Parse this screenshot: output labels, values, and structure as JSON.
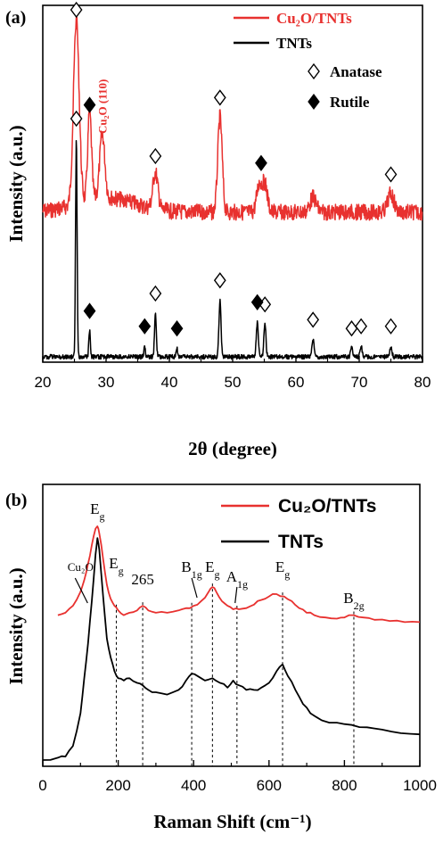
{
  "chart_data": [
    {
      "type": "line",
      "panel_label": "(a)",
      "xlabel": "2θ (degree)",
      "ylabel": "Intensity (a.u.)",
      "xlim": [
        20,
        80
      ],
      "xticks": [
        20,
        30,
        40,
        50,
        60,
        70,
        80
      ],
      "grid": false,
      "legend_position": "top-right",
      "legend": [
        {
          "text": "Cu₂O/TNTs",
          "color": "#e8312f",
          "type": "line"
        },
        {
          "text": "TNTs",
          "color": "#000000",
          "type": "line"
        },
        {
          "text": "Anatase",
          "color": "#000000",
          "type": "open-diamond"
        },
        {
          "text": "Rutile",
          "color": "#000000",
          "type": "filled-diamond"
        }
      ],
      "peak_label": {
        "text": "Cu₂O (110)",
        "x": 29.5,
        "color": "#e8312f"
      },
      "series": [
        {
          "name": "Cu₂O/TNTs",
          "color": "#e8312f",
          "peaks": [
            {
              "x": 25.3,
              "h": 1.0,
              "w": 0.45
            },
            {
              "x": 27.4,
              "h": 0.48,
              "w": 0.3
            },
            {
              "x": 29.4,
              "h": 0.35,
              "w": 0.4
            },
            {
              "x": 37.8,
              "h": 0.2,
              "w": 0.4
            },
            {
              "x": 48.0,
              "h": 0.52,
              "w": 0.35
            },
            {
              "x": 54.2,
              "h": 0.15,
              "w": 0.4
            },
            {
              "x": 55.1,
              "h": 0.15,
              "w": 0.4
            },
            {
              "x": 62.7,
              "h": 0.08,
              "w": 0.5
            },
            {
              "x": 75.0,
              "h": 0.1,
              "w": 0.5
            }
          ],
          "anatase_markers": [
            25.3,
            37.8,
            48.0,
            75.0
          ],
          "rutile_markers": [
            27.4,
            54.5
          ]
        },
        {
          "name": "TNTs",
          "color": "#000000",
          "peaks": [
            {
              "x": 25.3,
              "h": 1.0,
              "w": 0.12
            },
            {
              "x": 27.4,
              "h": 0.12,
              "w": 0.12
            },
            {
              "x": 36.1,
              "h": 0.05,
              "w": 0.12
            },
            {
              "x": 37.8,
              "h": 0.2,
              "w": 0.14
            },
            {
              "x": 41.2,
              "h": 0.04,
              "w": 0.12
            },
            {
              "x": 48.0,
              "h": 0.26,
              "w": 0.16
            },
            {
              "x": 53.9,
              "h": 0.16,
              "w": 0.16
            },
            {
              "x": 55.1,
              "h": 0.15,
              "w": 0.16
            },
            {
              "x": 62.7,
              "h": 0.08,
              "w": 0.16
            },
            {
              "x": 68.8,
              "h": 0.04,
              "w": 0.16
            },
            {
              "x": 70.3,
              "h": 0.05,
              "w": 0.16
            },
            {
              "x": 75.0,
              "h": 0.05,
              "w": 0.16
            }
          ],
          "anatase_markers": [
            25.3,
            37.8,
            48.0,
            55.1,
            62.7,
            68.8,
            70.3,
            75.0
          ],
          "rutile_markers": [
            27.4,
            36.1,
            41.2,
            53.9
          ]
        }
      ]
    },
    {
      "type": "line",
      "panel_label": "(b)",
      "xlabel": "Raman Shift (cm⁻¹)",
      "ylabel": "Intensity (a.u.)",
      "xlim": [
        0,
        1000
      ],
      "xticks": [
        0,
        200,
        400,
        600,
        800,
        1000
      ],
      "grid": false,
      "legend_position": "top-right",
      "legend": [
        {
          "text": "Cu₂O/TNTs",
          "color": "#e8312f",
          "type": "line"
        },
        {
          "text": "TNTs",
          "color": "#000000",
          "type": "line"
        }
      ],
      "band_labels": [
        {
          "text": "Cu₂O",
          "x": 100
        },
        {
          "text": "E",
          "sub": "g",
          "x": 145
        },
        {
          "text": "E",
          "sub": "g",
          "x": 195
        },
        {
          "text": "265",
          "x": 265
        },
        {
          "text": "B",
          "sub": "1g",
          "x": 395
        },
        {
          "text": "E",
          "sub": "g",
          "x": 450
        },
        {
          "text": "A",
          "sub": "1g",
          "x": 515
        },
        {
          "text": "E",
          "sub": "g",
          "x": 636
        },
        {
          "text": "B",
          "sub": "2g",
          "x": 825
        }
      ],
      "dashed_lines_x": [
        195,
        265,
        395,
        450,
        515,
        636,
        825
      ],
      "series": [
        {
          "name": "Cu₂O/TNTs",
          "color": "#e8312f",
          "x": [
            40,
            60,
            80,
            100,
            110,
            120,
            130,
            140,
            145,
            150,
            160,
            170,
            180,
            190,
            200,
            215,
            230,
            250,
            265,
            280,
            300,
            330,
            360,
            380,
            400,
            420,
            440,
            450,
            460,
            475,
            490,
            505,
            520,
            540,
            560,
            580,
            600,
            620,
            640,
            660,
            680,
            700,
            720,
            750,
            780,
            800,
            825,
            850,
            880,
            920,
            960,
            1000
          ],
          "y": [
            0.62,
            0.63,
            0.66,
            0.72,
            0.77,
            0.84,
            0.92,
            0.99,
            1.0,
            0.97,
            0.86,
            0.75,
            0.69,
            0.66,
            0.64,
            0.62,
            0.63,
            0.64,
            0.66,
            0.64,
            0.63,
            0.63,
            0.64,
            0.65,
            0.66,
            0.68,
            0.72,
            0.74,
            0.72,
            0.68,
            0.66,
            0.645,
            0.645,
            0.65,
            0.665,
            0.685,
            0.7,
            0.71,
            0.7,
            0.68,
            0.65,
            0.63,
            0.62,
            0.61,
            0.605,
            0.61,
            0.62,
            0.61,
            0.6,
            0.595,
            0.59,
            0.59
          ]
        },
        {
          "name": "TNTs",
          "color": "#000000",
          "x": [
            0,
            40,
            60,
            80,
            100,
            110,
            120,
            130,
            140,
            145,
            150,
            160,
            170,
            180,
            190,
            200,
            215,
            230,
            250,
            265,
            280,
            300,
            330,
            360,
            380,
            395,
            410,
            430,
            450,
            470,
            490,
            505,
            520,
            540,
            560,
            580,
            600,
            620,
            636,
            650,
            670,
            690,
            710,
            740,
            780,
            820,
            860,
            900,
            950,
            1000
          ],
          "y": [
            0.0,
            0.01,
            0.015,
            0.06,
            0.2,
            0.35,
            0.5,
            0.68,
            0.88,
            0.95,
            0.9,
            0.7,
            0.52,
            0.44,
            0.38,
            0.35,
            0.34,
            0.35,
            0.33,
            0.32,
            0.3,
            0.29,
            0.28,
            0.3,
            0.34,
            0.37,
            0.36,
            0.34,
            0.35,
            0.33,
            0.31,
            0.34,
            0.32,
            0.3,
            0.3,
            0.31,
            0.33,
            0.38,
            0.41,
            0.36,
            0.3,
            0.24,
            0.2,
            0.17,
            0.16,
            0.15,
            0.14,
            0.13,
            0.115,
            0.11
          ]
        }
      ]
    }
  ]
}
